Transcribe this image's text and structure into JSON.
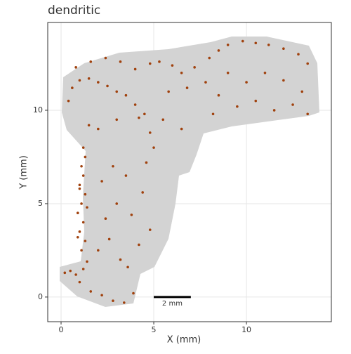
{
  "chart_data": {
    "type": "scatter",
    "title": "dendritic",
    "x_label": "X (mm)",
    "y_label": "Y (mm)",
    "xlim": [
      -0.72,
      14.58
    ],
    "ylim": [
      -1.32,
      14.7
    ],
    "xticks": [
      0,
      5,
      10
    ],
    "yticks": [
      0,
      5,
      10
    ],
    "grid": true,
    "scale_bar": {
      "label": "2 mm",
      "x": [
        5,
        7
      ],
      "y": 0
    },
    "series": [
      {
        "color": "#a0410d",
        "x": [
          1.1,
          1.3,
          1.0,
          1.2,
          0.9,
          1.1,
          1.3,
          1.0,
          1.2,
          1.1,
          1.3,
          1.2,
          0.9,
          1.4,
          1.0,
          0.2,
          0.5,
          0.8,
          1.2,
          1.4,
          1.0,
          1.6,
          2.2,
          2.8,
          3.4,
          3.9,
          2.0,
          2.6,
          3.2,
          3.6,
          4.2,
          4.8,
          2.4,
          3.0,
          3.8,
          4.4,
          2.2,
          2.8,
          3.5,
          4.6,
          5.0,
          4.8,
          2.0,
          3.0,
          4.2,
          1.5,
          0.4,
          0.6,
          1.0,
          1.5,
          2.0,
          2.5,
          3.0,
          3.5,
          4.0,
          4.5,
          0.8,
          1.6,
          2.4,
          3.2,
          4.0,
          4.8,
          5.3,
          6.0,
          6.5,
          7.2,
          5.8,
          6.8,
          5.5,
          6.5,
          8.0,
          8.5,
          9.0,
          9.8,
          10.5,
          11.2,
          12.0,
          12.8,
          13.3,
          9.0,
          10.0,
          11.0,
          12.0,
          13.0,
          8.5,
          9.5,
          10.5,
          11.5,
          12.5,
          13.3,
          7.8,
          8.2
        ],
        "y": [
          2.5,
          3.0,
          3.5,
          4.0,
          4.5,
          5.0,
          5.5,
          6.0,
          6.5,
          7.0,
          7.5,
          8.0,
          3.2,
          4.8,
          5.8,
          1.3,
          1.4,
          1.2,
          1.5,
          1.9,
          0.8,
          0.3,
          0.1,
          -0.2,
          -0.3,
          0.2,
          2.5,
          3.1,
          2.0,
          1.6,
          2.8,
          3.6,
          4.2,
          5.0,
          4.4,
          5.6,
          6.2,
          7.0,
          6.5,
          7.2,
          8.0,
          8.8,
          9.0,
          9.5,
          9.6,
          9.2,
          10.5,
          11.2,
          11.6,
          11.7,
          11.5,
          11.3,
          11.0,
          10.8,
          10.3,
          9.8,
          12.3,
          12.6,
          12.8,
          12.6,
          12.2,
          12.5,
          12.6,
          12.4,
          12.0,
          12.3,
          11.0,
          11.2,
          9.5,
          9.0,
          12.8,
          13.2,
          13.5,
          13.7,
          13.6,
          13.5,
          13.3,
          13.0,
          12.5,
          12.0,
          11.5,
          12.0,
          11.6,
          11.0,
          10.8,
          10.2,
          10.5,
          10.0,
          10.3,
          9.8,
          11.5,
          9.8
        ]
      }
    ]
  }
}
